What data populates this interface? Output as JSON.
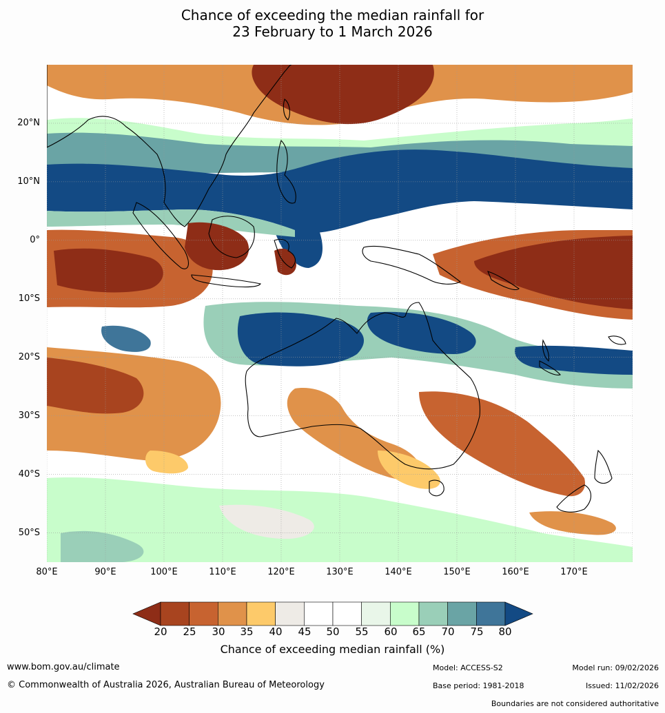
{
  "title": {
    "line1": "Chance of exceeding the median rainfall for",
    "line2": "23 February to 1 March 2026"
  },
  "map": {
    "lat_labels": [
      "20°N",
      "10°N",
      "0°",
      "10°S",
      "20°S",
      "30°S",
      "40°S",
      "50°S"
    ],
    "lon_labels": [
      "80°E",
      "90°E",
      "100°E",
      "110°E",
      "120°E",
      "130°E",
      "140°E",
      "150°E",
      "160°E",
      "170°E"
    ],
    "lon_range": [
      80,
      180
    ],
    "lat_range": [
      -55,
      30
    ]
  },
  "colorbar": {
    "ticks": [
      "20",
      "25",
      "30",
      "35",
      "40",
      "45",
      "50",
      "55",
      "60",
      "65",
      "70",
      "75",
      "80"
    ],
    "label": "Chance of exceeding median rainfall (%)",
    "colors": {
      "below_20": "#8e2d17",
      "c20_25": "#a8441f",
      "c25_30": "#c76330",
      "c30_35": "#e0924a",
      "c35_40": "#fdca6a",
      "c40_45": "#eeebe6",
      "c45_50": "#ffffff",
      "c50_55": "#ffffff",
      "c55_60": "#e9f6e9",
      "c60_65": "#c8fdcb",
      "c65_70": "#9acfb8",
      "c70_75": "#6aa4a5",
      "c75_80": "#3f7599",
      "above_80": "#134a84"
    }
  },
  "footer": {
    "website": "www.bom.gov.au/climate",
    "copyright": "© Commonwealth of Australia 2026, Australian Bureau of Meteorology",
    "model": "Model: ACCESS-S2",
    "base_period": "Base period: 1981-2018",
    "model_run": "Model run: 09/02/2026",
    "issued": "Issued: 11/02/2026",
    "boundaries_note": "Boundaries are not considered authoritative"
  }
}
